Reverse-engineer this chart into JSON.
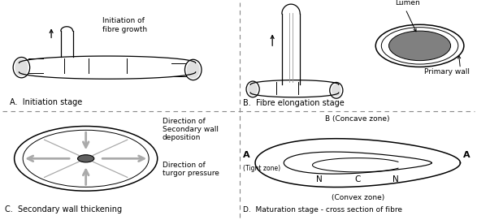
{
  "bg_color": "#ffffff",
  "lc": "#000000",
  "gc": "#aaaaaa",
  "dc": "#606060",
  "lumen_fill": "#808080",
  "panel_A_title": "A.  Initiation stage",
  "panel_B_title": "B.  Fibre elongation stage",
  "panel_C_title": "C.  Secondary wall thickening",
  "panel_D_title": "D.  Maturation stage - cross section of fibre",
  "label_initiation": "Initiation of\nfibre growth",
  "label_lumen": "Lumen",
  "label_primary_wall": "Primary wall",
  "label_dir_sec": "Direction of\nSecondary wall\ndeposition",
  "label_dir_turgor": "Direction of\nturgor pressure",
  "label_concave": "B (Concave zone)",
  "label_convex": "(Convex zone)",
  "label_A": "A",
  "label_tight": "(Tight zone)",
  "label_N": "N",
  "label_C": "C"
}
